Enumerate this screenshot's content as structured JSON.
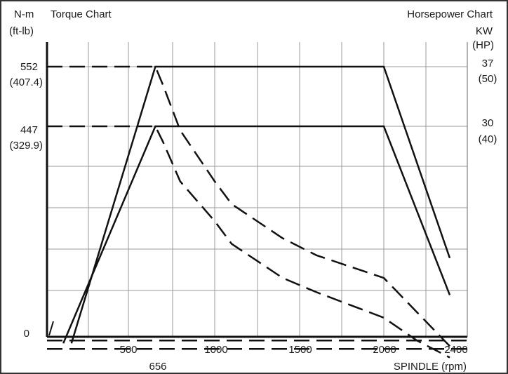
{
  "chart_data": {
    "type": "line",
    "left_axis": {
      "unit_line1": "N-m",
      "unit_line2": "(ft-lb)",
      "title": "Torque Chart",
      "ticks": [
        {
          "value": 552,
          "label": "552",
          "sublabel": "(407.4)"
        },
        {
          "value": 447,
          "label": "447",
          "sublabel": "(329.9)"
        },
        {
          "value": 0,
          "label": "0",
          "sublabel": ""
        }
      ]
    },
    "right_axis": {
      "title": "Horsepower Chart",
      "unit_line1": "KW",
      "unit_line2": "(HP)",
      "ticks": [
        {
          "label": "37",
          "sublabel": "(50)"
        },
        {
          "label": "30",
          "sublabel": "(40)"
        }
      ]
    },
    "x_axis": {
      "title": "SPINDLE (rpm)",
      "ticks": [
        {
          "value": 500,
          "label": "500"
        },
        {
          "value": 1000,
          "label": "1000"
        },
        {
          "value": 1500,
          "label": "1500"
        },
        {
          "value": 2000,
          "label": "2000"
        },
        {
          "value": 2400,
          "label": "2400"
        }
      ],
      "extra_label": {
        "value": 656,
        "label": "656"
      }
    },
    "xlim": [
      0,
      2550
    ],
    "grid": true,
    "series": [
      {
        "style": "dashed",
        "role": "torque-high",
        "x": [
          0,
          656,
          700,
          800,
          1000,
          1100,
          1400,
          1600,
          2000,
          2200,
          2400
        ],
        "y": [
          552,
          552,
          520,
          440,
          350,
          310,
          250,
          220,
          180,
          120,
          60
        ]
      },
      {
        "style": "dashed",
        "role": "torque-low",
        "x": [
          0,
          656,
          700,
          800,
          1000,
          1100,
          1400,
          1600,
          2000,
          2200,
          2400
        ],
        "y": [
          447,
          447,
          420,
          350,
          280,
          240,
          180,
          155,
          110,
          70,
          40
        ]
      },
      {
        "style": "solid",
        "role": "power-high",
        "x": [
          150,
          656,
          2000,
          2400
        ],
        "y": [
          65,
          552,
          552,
          215
        ]
      },
      {
        "style": "solid",
        "role": "power-low",
        "x": [
          100,
          656,
          2000,
          2400
        ],
        "y": [
          65,
          447,
          447,
          150
        ]
      },
      {
        "style": "dashed",
        "role": "baseline-upper",
        "x": [
          0,
          2550
        ],
        "y": [
          70,
          70
        ]
      },
      {
        "style": "dashed",
        "role": "baseline-lower",
        "x": [
          0,
          2550
        ],
        "y": [
          55,
          55
        ]
      }
    ]
  }
}
